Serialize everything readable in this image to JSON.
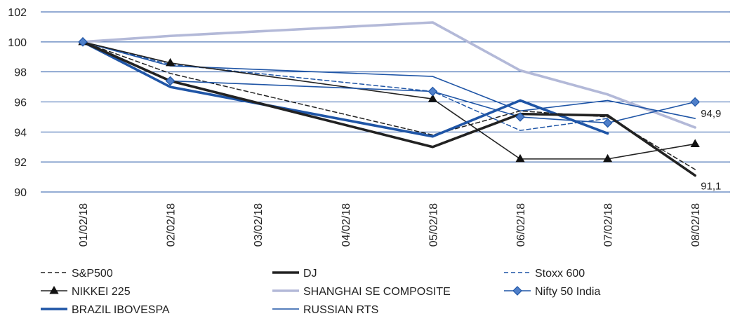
{
  "chart_data": {
    "type": "line",
    "x": [
      "01/02/18",
      "02/02/18",
      "03/02/18",
      "04/02/18",
      "05/02/18",
      "06/02/18",
      "07/02/18",
      "08/02/18"
    ],
    "ylim": [
      90,
      102
    ],
    "yticks": [
      90,
      92,
      94,
      96,
      98,
      100,
      102
    ],
    "grid": true,
    "legend_position": "bottom",
    "series": [
      {
        "name": "S&P500",
        "color": "#222222",
        "style": "dashed",
        "marker": "none",
        "values": [
          100,
          97.9,
          null,
          null,
          93.8,
          95.4,
          95.0,
          91.5
        ]
      },
      {
        "name": "DJ",
        "color": "#222222",
        "style": "thick",
        "marker": "none",
        "values": [
          100,
          97.4,
          null,
          null,
          93.0,
          95.2,
          95.1,
          91.1
        ]
      },
      {
        "name": "Stoxx 600",
        "color": "#1f55a6",
        "style": "dashed",
        "marker": "none",
        "values": [
          100,
          98.5,
          null,
          null,
          96.7,
          94.1,
          94.9,
          null
        ]
      },
      {
        "name": "NIKKEI 225",
        "color": "#222222",
        "style": "thin",
        "marker": "triangle",
        "values": [
          100,
          98.6,
          null,
          null,
          96.2,
          92.2,
          92.2,
          93.2
        ]
      },
      {
        "name": "SHANGHAI SE COMPOSITE",
        "color": "#b3b9d8",
        "style": "thick",
        "marker": "none",
        "values": [
          100,
          100.4,
          null,
          null,
          101.3,
          98.1,
          96.5,
          94.3
        ]
      },
      {
        "name": "Nifty 50 India",
        "color": "#1f55a6",
        "style": "thin",
        "marker": "diamond",
        "values": [
          100,
          97.4,
          null,
          null,
          96.7,
          95.0,
          94.6,
          96.0
        ]
      },
      {
        "name": "BRAZIL IBOVESPA",
        "color": "#1f55a6",
        "style": "thick",
        "marker": "none",
        "values": [
          100,
          97.0,
          null,
          null,
          93.7,
          96.1,
          93.9,
          null
        ]
      },
      {
        "name": "RUSSIAN RTS",
        "color": "#1f55a6",
        "style": "thin",
        "marker": "none",
        "values": [
          100,
          98.4,
          null,
          null,
          97.7,
          95.4,
          96.1,
          94.9
        ]
      }
    ],
    "annotations": [
      {
        "text": "94,9",
        "x": "08/02/18",
        "y": 94.9
      },
      {
        "text": "91,1",
        "x": "08/02/18",
        "y": 91.1
      }
    ]
  }
}
